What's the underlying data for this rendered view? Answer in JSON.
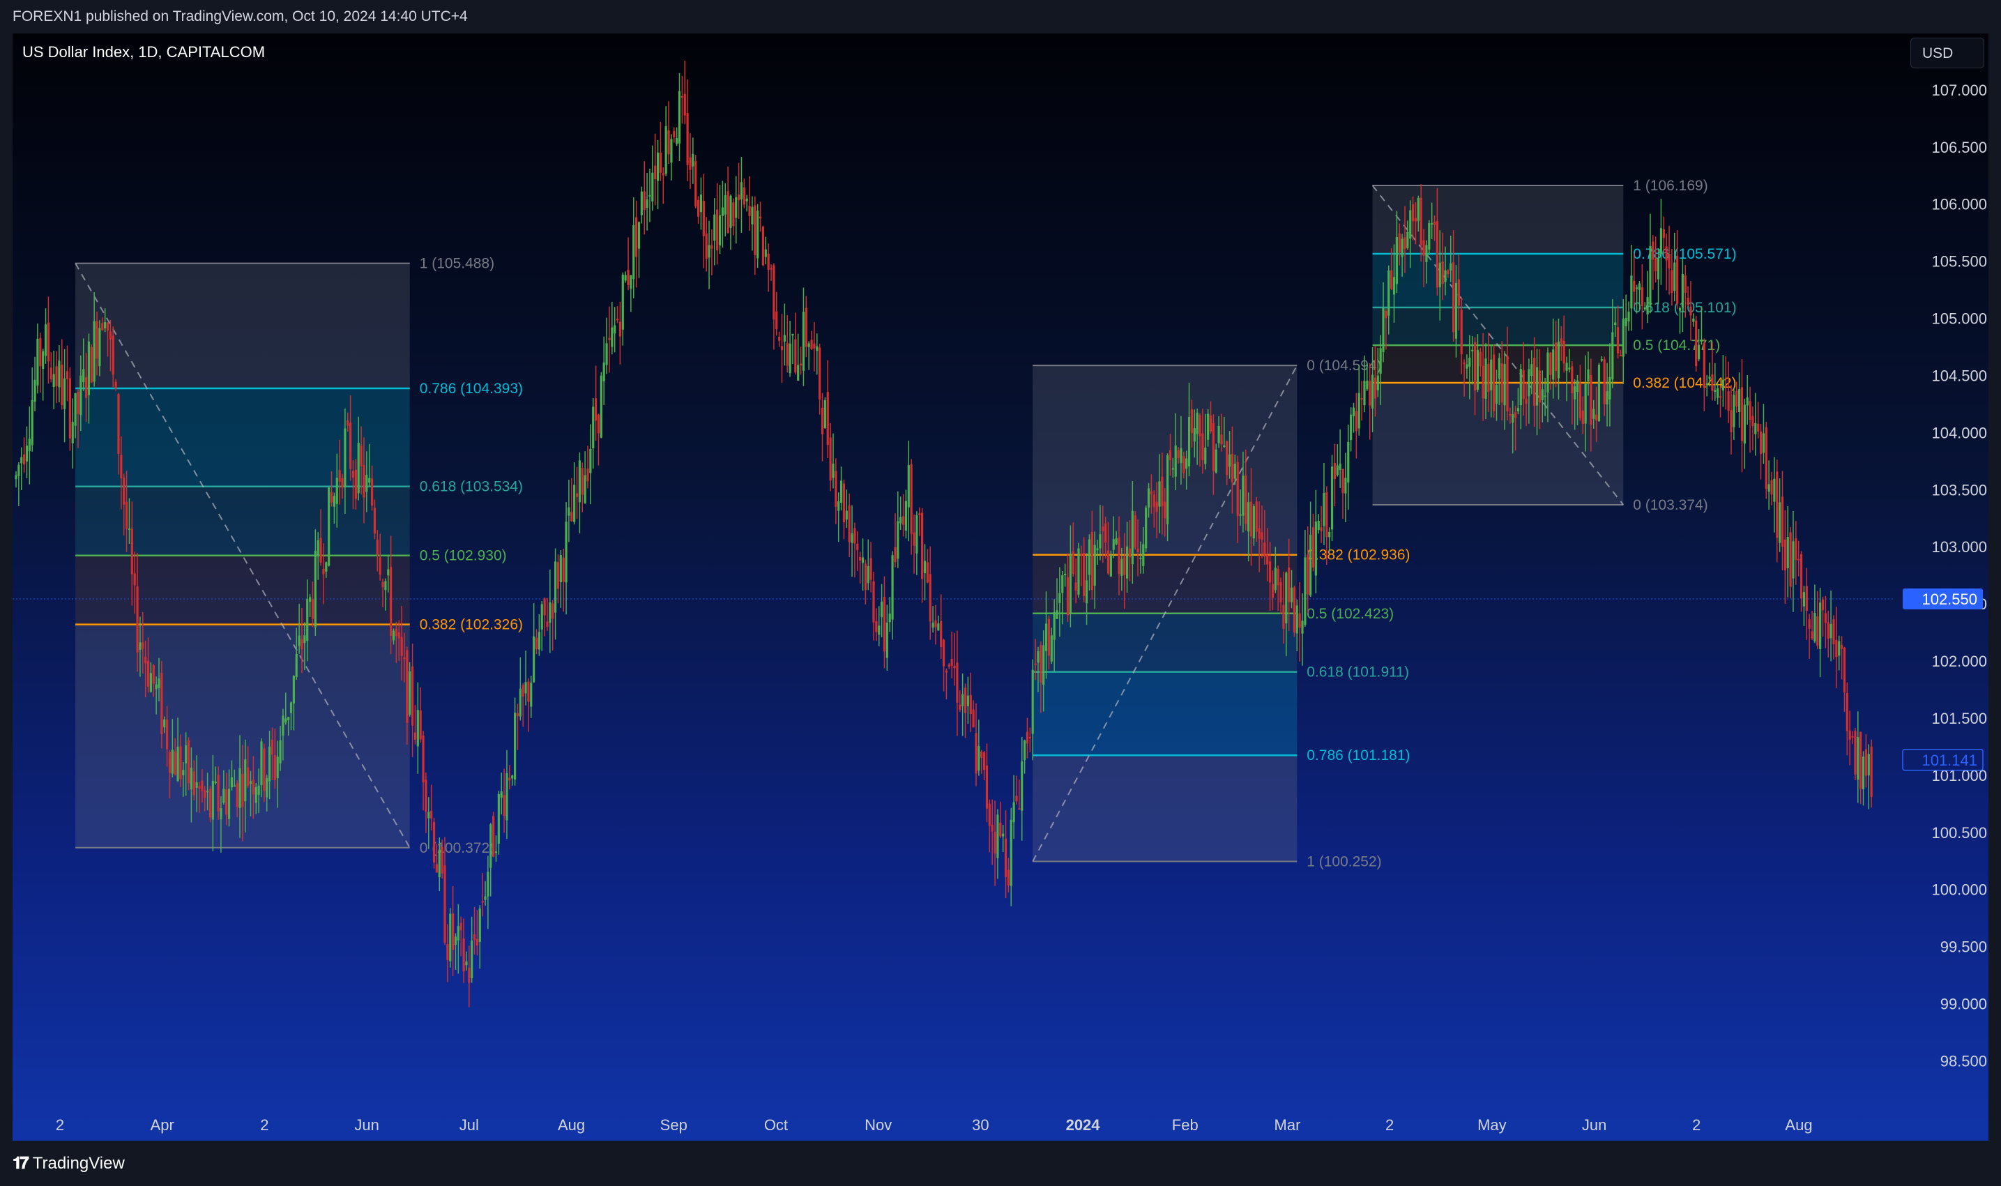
{
  "header": {
    "published": "FOREXN1 published on TradingView.com, Oct 10, 2024 14:40 UTC+4"
  },
  "chart": {
    "symbol_line": "US Dollar Index, 1D, CAPITALCOM",
    "currency_button": "USD"
  },
  "footer": {
    "brand": "TradingView",
    "logo_icon": "tradingview-logo-icon"
  },
  "colors": {
    "up": "#26a69a",
    "down": "#ef5350",
    "bull": "#4caf50",
    "bear": "#d32f2f",
    "fib_0786": "#00bcd4",
    "fib_0618": "#26a69a",
    "fib_05": "#4caf50",
    "fib_0382": "#ff9800",
    "price_tag": "#2962ff"
  },
  "chart_data": {
    "type": "candlestick",
    "ylim": [
      98.1,
      107.5
    ],
    "y_ticks": [
      "98.500",
      "99.000",
      "99.500",
      "100.000",
      "100.500",
      "101.000",
      "101.500",
      "102.000",
      "102.500",
      "103.000",
      "103.500",
      "104.000",
      "104.500",
      "105.000",
      "105.500",
      "106.000",
      "106.500",
      "107.000"
    ],
    "x_ticks": [
      "2",
      "Apr",
      "2",
      "Jun",
      "Jul",
      "Aug",
      "Sep",
      "Oct",
      "Nov",
      "30",
      "2024",
      "Feb",
      "Mar",
      "2",
      "May",
      "Jun",
      "2",
      "Aug"
    ],
    "bold_tick": "2024",
    "current_price": "102.550",
    "secondary_price": "101.141",
    "price_series": [
      [
        0,
        103.6
      ],
      [
        10,
        104.8
      ],
      [
        22,
        104.1
      ],
      [
        33,
        105.2
      ],
      [
        44,
        102.4
      ],
      [
        58,
        101.2
      ],
      [
        72,
        100.7
      ],
      [
        84,
        101.0
      ],
      [
        96,
        101.1
      ],
      [
        110,
        102.6
      ],
      [
        122,
        103.9
      ],
      [
        132,
        103.4
      ],
      [
        142,
        102.0
      ],
      [
        150,
        101.3
      ],
      [
        160,
        99.6
      ],
      [
        168,
        99.3
      ],
      [
        178,
        100.6
      ],
      [
        192,
        102.0
      ],
      [
        208,
        103.4
      ],
      [
        222,
        104.9
      ],
      [
        235,
        106.3
      ],
      [
        246,
        106.8
      ],
      [
        256,
        105.8
      ],
      [
        268,
        106.0
      ],
      [
        278,
        105.6
      ],
      [
        286,
        104.6
      ],
      [
        294,
        104.9
      ],
      [
        304,
        103.6
      ],
      [
        314,
        102.9
      ],
      [
        322,
        102.2
      ],
      [
        330,
        103.6
      ],
      [
        340,
        102.5
      ],
      [
        352,
        101.6
      ],
      [
        362,
        100.6
      ],
      [
        368,
        100.3
      ],
      [
        376,
        101.6
      ],
      [
        388,
        102.6
      ],
      [
        400,
        102.9
      ],
      [
        412,
        103.0
      ],
      [
        424,
        103.4
      ],
      [
        436,
        104.1
      ],
      [
        446,
        103.9
      ],
      [
        456,
        103.4
      ],
      [
        466,
        102.7
      ],
      [
        474,
        102.4
      ],
      [
        482,
        103.0
      ],
      [
        494,
        103.9
      ],
      [
        504,
        104.4
      ],
      [
        512,
        105.6
      ],
      [
        520,
        105.8
      ],
      [
        530,
        105.4
      ],
      [
        540,
        104.6
      ],
      [
        550,
        104.4
      ],
      [
        560,
        104.3
      ],
      [
        570,
        104.7
      ],
      [
        580,
        104.2
      ],
      [
        590,
        104.5
      ],
      [
        600,
        105.2
      ],
      [
        610,
        105.6
      ],
      [
        620,
        105.0
      ],
      [
        632,
        104.3
      ],
      [
        644,
        104.1
      ],
      [
        654,
        103.2
      ],
      [
        664,
        102.4
      ],
      [
        674,
        102.3
      ],
      [
        682,
        101.2
      ],
      [
        688,
        101.0
      ]
    ],
    "fib_retracements": [
      {
        "levels": [
          {
            "r": "1",
            "p": "105.488",
            "v": 105.488
          },
          {
            "r": "0.786",
            "p": "104.393",
            "v": 104.393
          },
          {
            "r": "0.618",
            "p": "103.534",
            "v": 103.534
          },
          {
            "r": "0.5",
            "p": "102.930",
            "v": 102.93
          },
          {
            "r": "0.382",
            "p": "102.326",
            "v": 102.326
          },
          {
            "r": "0",
            "p": "100.372",
            "v": 100.372
          }
        ],
        "t_start": 22,
        "t_end": 146
      },
      {
        "levels": [
          {
            "r": "0",
            "p": "104.594",
            "v": 104.594
          },
          {
            "r": "0.382",
            "p": "102.936",
            "v": 102.936
          },
          {
            "r": "0.5",
            "p": "102.423",
            "v": 102.423
          },
          {
            "r": "0.618",
            "p": "101.911",
            "v": 101.911
          },
          {
            "r": "0.786",
            "p": "101.181",
            "v": 101.181
          },
          {
            "r": "1",
            "p": "100.252",
            "v": 100.252
          }
        ],
        "t_start": 377,
        "t_end": 475
      },
      {
        "levels": [
          {
            "r": "1",
            "p": "106.169",
            "v": 106.169
          },
          {
            "r": "0.786",
            "p": "105.571",
            "v": 105.571
          },
          {
            "r": "0.618",
            "p": "105.101",
            "v": 105.101
          },
          {
            "r": "0.5",
            "p": "104.771",
            "v": 104.771
          },
          {
            "r": "0.382",
            "p": "104.442",
            "v": 104.442
          },
          {
            "r": "0",
            "p": "103.374",
            "v": 103.374
          }
        ],
        "t_start": 503,
        "t_end": 596
      }
    ]
  }
}
